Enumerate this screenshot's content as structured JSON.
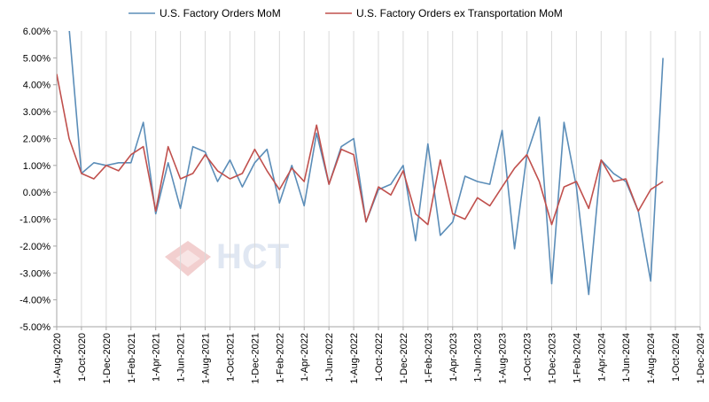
{
  "chart_data": {
    "type": "line",
    "title": "",
    "xlabel": "",
    "ylabel": "",
    "legend_position": "top",
    "grid": {
      "horizontal": false,
      "vertical": true
    },
    "ylim": [
      -0.05,
      0.06
    ],
    "y_ticks": [
      "6.00%",
      "5.00%",
      "4.00%",
      "3.00%",
      "2.00%",
      "1.00%",
      "0.00%",
      "-1.00%",
      "-2.00%",
      "-3.00%",
      "-4.00%",
      "-5.00%"
    ],
    "y_tick_values": [
      0.06,
      0.05,
      0.04,
      0.03,
      0.02,
      0.01,
      0.0,
      -0.01,
      -0.02,
      -0.03,
      -0.04,
      -0.05
    ],
    "x_ticks": [
      "1-Aug-2020",
      "1-Oct-2020",
      "1-Dec-2020",
      "1-Feb-2021",
      "1-Apr-2021",
      "1-Jun-2021",
      "1-Aug-2021",
      "1-Oct-2021",
      "1-Dec-2021",
      "1-Feb-2022",
      "1-Apr-2022",
      "1-Jun-2022",
      "1-Aug-2022",
      "1-Oct-2022",
      "1-Dec-2022",
      "1-Feb-2023",
      "1-Apr-2023",
      "1-Jun-2023",
      "1-Aug-2023",
      "1-Oct-2023",
      "1-Dec-2023",
      "1-Feb-2024",
      "1-Apr-2024",
      "1-Jun-2024",
      "1-Aug-2024",
      "1-Oct-2024",
      "1-Dec-2024"
    ],
    "x": [
      "2020-08",
      "2020-09",
      "2020-10",
      "2020-11",
      "2020-12",
      "2021-01",
      "2021-02",
      "2021-03",
      "2021-04",
      "2021-05",
      "2021-06",
      "2021-07",
      "2021-08",
      "2021-09",
      "2021-10",
      "2021-11",
      "2021-12",
      "2022-01",
      "2022-02",
      "2022-03",
      "2022-04",
      "2022-05",
      "2022-06",
      "2022-07",
      "2022-08",
      "2022-09",
      "2022-10",
      "2022-11",
      "2022-12",
      "2023-01",
      "2023-02",
      "2023-03",
      "2023-04",
      "2023-05",
      "2023-06",
      "2023-07",
      "2023-08",
      "2023-09",
      "2023-10",
      "2023-11",
      "2023-12",
      "2024-01",
      "2024-02",
      "2024-03",
      "2024-04",
      "2024-05",
      "2024-06",
      "2024-07",
      "2024-08",
      "2024-09"
    ],
    "x_range": [
      "2020-08",
      "2024-12"
    ],
    "series": [
      {
        "name": "U.S. Factory Orders MoM",
        "color": "#5B8DB8",
        "values": [
          0.064,
          0.061,
          0.007,
          0.011,
          0.01,
          0.011,
          0.011,
          0.026,
          -0.008,
          0.011,
          -0.006,
          0.017,
          0.015,
          0.004,
          0.012,
          0.002,
          0.011,
          0.016,
          -0.004,
          0.01,
          -0.005,
          0.022,
          0.003,
          0.017,
          0.02,
          -0.011,
          0.001,
          0.003,
          0.01,
          -0.018,
          0.018,
          -0.016,
          -0.011,
          0.006,
          0.004,
          0.003,
          0.023,
          -0.021,
          0.014,
          0.028,
          -0.034,
          0.026,
          0.002,
          -0.038,
          0.012,
          0.007,
          0.004,
          -0.007,
          -0.033,
          0.05
        ]
      },
      {
        "name": "U.S. Factory Orders ex Transportation MoM",
        "color": "#C0504D",
        "values": [
          0.044,
          0.02,
          0.007,
          0.005,
          0.01,
          0.008,
          0.014,
          0.017,
          -0.007,
          0.017,
          0.005,
          0.007,
          0.014,
          0.008,
          0.005,
          0.007,
          0.016,
          0.008,
          0.001,
          0.009,
          0.004,
          0.025,
          0.003,
          0.016,
          0.014,
          -0.011,
          0.002,
          -0.001,
          0.008,
          -0.008,
          -0.012,
          0.012,
          -0.008,
          -0.01,
          -0.002,
          -0.005,
          0.002,
          0.009,
          0.014,
          0.004,
          -0.012,
          0.002,
          0.004,
          -0.006,
          0.012,
          0.004,
          0.005,
          -0.007,
          0.001,
          0.004
        ]
      }
    ]
  },
  "watermark": {
    "text": "HCT",
    "color": "#C8D5E8"
  }
}
